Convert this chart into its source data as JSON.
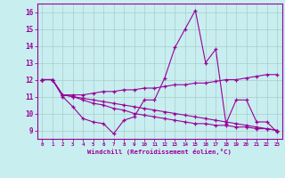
{
  "xlabel": "Windchill (Refroidissement éolien,°C)",
  "background_color": "#c8eef0",
  "line_color": "#990099",
  "grid_color": "#aacccc",
  "xlim": [
    -0.5,
    23.5
  ],
  "ylim": [
    8.5,
    16.5
  ],
  "xticks": [
    0,
    1,
    2,
    3,
    4,
    5,
    6,
    7,
    8,
    9,
    10,
    11,
    12,
    13,
    14,
    15,
    16,
    17,
    18,
    19,
    20,
    21,
    22,
    23
  ],
  "yticks": [
    9,
    10,
    11,
    12,
    13,
    14,
    15,
    16
  ],
  "series": [
    [
      12.0,
      12.0,
      11.0,
      10.4,
      9.7,
      9.5,
      9.4,
      8.8,
      9.6,
      9.8,
      10.8,
      10.8,
      12.1,
      13.9,
      15.0,
      16.1,
      13.0,
      13.8,
      9.4,
      10.8,
      10.8,
      9.5,
      9.5,
      8.9
    ],
    [
      12.0,
      12.0,
      11.1,
      11.1,
      11.1,
      11.2,
      11.3,
      11.3,
      11.4,
      11.4,
      11.5,
      11.5,
      11.6,
      11.7,
      11.7,
      11.8,
      11.8,
      11.9,
      12.0,
      12.0,
      12.1,
      12.2,
      12.3,
      12.3
    ],
    [
      12.0,
      12.0,
      11.1,
      11.0,
      10.9,
      10.8,
      10.7,
      10.6,
      10.5,
      10.4,
      10.3,
      10.2,
      10.1,
      10.0,
      9.9,
      9.8,
      9.7,
      9.6,
      9.5,
      9.4,
      9.3,
      9.2,
      9.1,
      9.0
    ],
    [
      12.0,
      12.0,
      11.1,
      11.0,
      10.8,
      10.6,
      10.5,
      10.3,
      10.2,
      10.0,
      9.9,
      9.8,
      9.7,
      9.6,
      9.5,
      9.4,
      9.4,
      9.3,
      9.3,
      9.2,
      9.2,
      9.1,
      9.1,
      9.0
    ]
  ]
}
